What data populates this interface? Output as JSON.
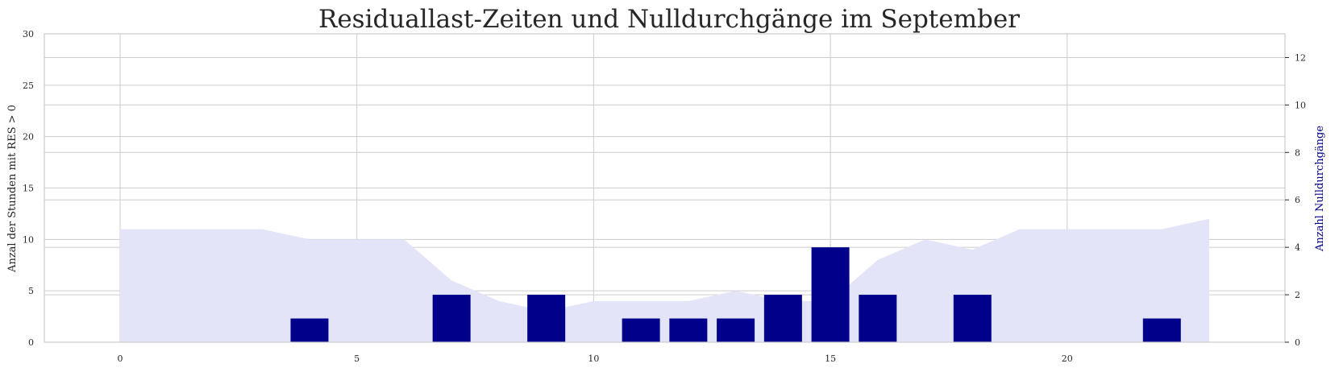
{
  "chart_data": {
    "type": "bar",
    "title": "Residuallast-Zeiten und Nulldurchgänge im September",
    "x": [
      0,
      1,
      2,
      3,
      4,
      5,
      6,
      7,
      8,
      9,
      10,
      11,
      12,
      13,
      14,
      15,
      16,
      17,
      18,
      19,
      20,
      21,
      22,
      23
    ],
    "xlim": [
      -1.6,
      24.6
    ],
    "xticks": [
      0,
      5,
      10,
      15,
      20
    ],
    "grid": true,
    "left_axis": {
      "label": "Anzal der Stunden mit RES > 0",
      "ylim": [
        0,
        30
      ],
      "ticks": [
        0,
        5,
        10,
        15,
        20,
        25,
        30
      ]
    },
    "right_axis": {
      "label": "Anzahl Nulldurchgänge",
      "ylim": [
        0,
        13
      ],
      "ticks": [
        0,
        2,
        4,
        6,
        8,
        10,
        12
      ],
      "color": "#00008b"
    },
    "area_series": {
      "axis": "left",
      "color": "#e3e4f8",
      "values": [
        11,
        11,
        11,
        11,
        10,
        10,
        10,
        6,
        4,
        3,
        4,
        4,
        4,
        5,
        4,
        4,
        8,
        10,
        9,
        11,
        11,
        11,
        11,
        12
      ]
    },
    "bar_series": {
      "axis": "right",
      "color": "#00008b",
      "values": [
        0,
        0,
        0,
        0,
        1,
        0,
        0,
        2,
        0,
        2,
        0,
        1,
        1,
        1,
        2,
        4,
        2,
        0,
        2,
        0,
        0,
        0,
        1,
        0
      ]
    }
  }
}
